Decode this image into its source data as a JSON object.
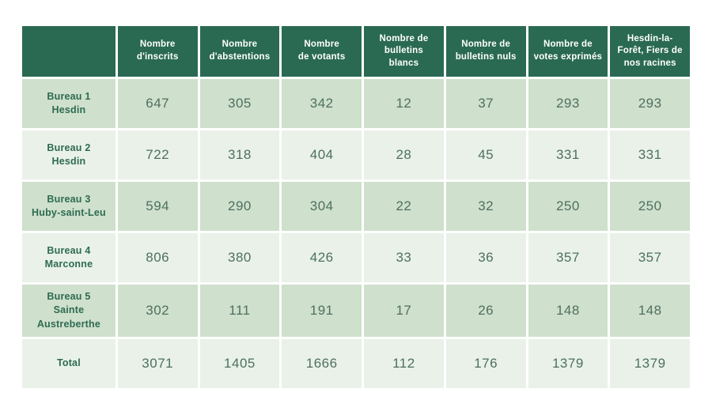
{
  "colors": {
    "page_background": "#ffffff",
    "header_background": "#2a6a52",
    "header_text": "#ffffff",
    "row_odd_background": "#cfe0cc",
    "row_even_background": "#e9f1e8",
    "row_label_text": "#2e6b52",
    "value_text": "#4e7061",
    "grid_gap": "#ffffff"
  },
  "table": {
    "corner_label": "",
    "headers": [
      "Nombre\nd'inscrits",
      "Nombre\nd'abstentions",
      "Nombre\nde votants",
      "Nombre de\nbulletins\nblancs",
      "Nombre de\nbulletins nuls",
      "Nombre de\nvotes exprimés",
      "Hesdin-la-\nForêt, Fiers de\nnos racines"
    ],
    "rows": [
      {
        "label": "Bureau 1\nHesdin",
        "values": [
          "647",
          "305",
          "342",
          "12",
          "37",
          "293",
          "293"
        ]
      },
      {
        "label": "Bureau 2\nHesdin",
        "values": [
          "722",
          "318",
          "404",
          "28",
          "45",
          "331",
          "331"
        ]
      },
      {
        "label": "Bureau 3\nHuby-saint-Leu",
        "values": [
          "594",
          "290",
          "304",
          "22",
          "32",
          "250",
          "250"
        ]
      },
      {
        "label": "Bureau 4\nMarconne",
        "values": [
          "806",
          "380",
          "426",
          "33",
          "36",
          "357",
          "357"
        ]
      },
      {
        "label": "Bureau 5\nSainte\nAustreberthe",
        "values": [
          "302",
          "111",
          "191",
          "17",
          "26",
          "148",
          "148"
        ]
      },
      {
        "label": "Total",
        "values": [
          "3071",
          "1405",
          "1666",
          "112",
          "176",
          "1379",
          "1379"
        ]
      }
    ]
  },
  "chart_data": {
    "type": "table",
    "title": "",
    "columns": [
      "",
      "Nombre d'inscrits",
      "Nombre d'abstentions",
      "Nombre de votants",
      "Nombre de bulletins blancs",
      "Nombre de bulletins nuls",
      "Nombre de votes exprimés",
      "Hesdin-la-Forêt, Fiers de nos racines"
    ],
    "rows": [
      [
        "Bureau 1 Hesdin",
        647,
        305,
        342,
        12,
        37,
        293,
        293
      ],
      [
        "Bureau 2 Hesdin",
        722,
        318,
        404,
        28,
        45,
        331,
        331
      ],
      [
        "Bureau 3 Huby-saint-Leu",
        594,
        290,
        304,
        22,
        32,
        250,
        250
      ],
      [
        "Bureau 4 Marconne",
        806,
        380,
        426,
        33,
        36,
        357,
        357
      ],
      [
        "Bureau 5 Sainte Austreberthe",
        302,
        111,
        191,
        17,
        26,
        148,
        148
      ],
      [
        "Total",
        3071,
        1405,
        1666,
        112,
        176,
        1379,
        1379
      ]
    ]
  }
}
